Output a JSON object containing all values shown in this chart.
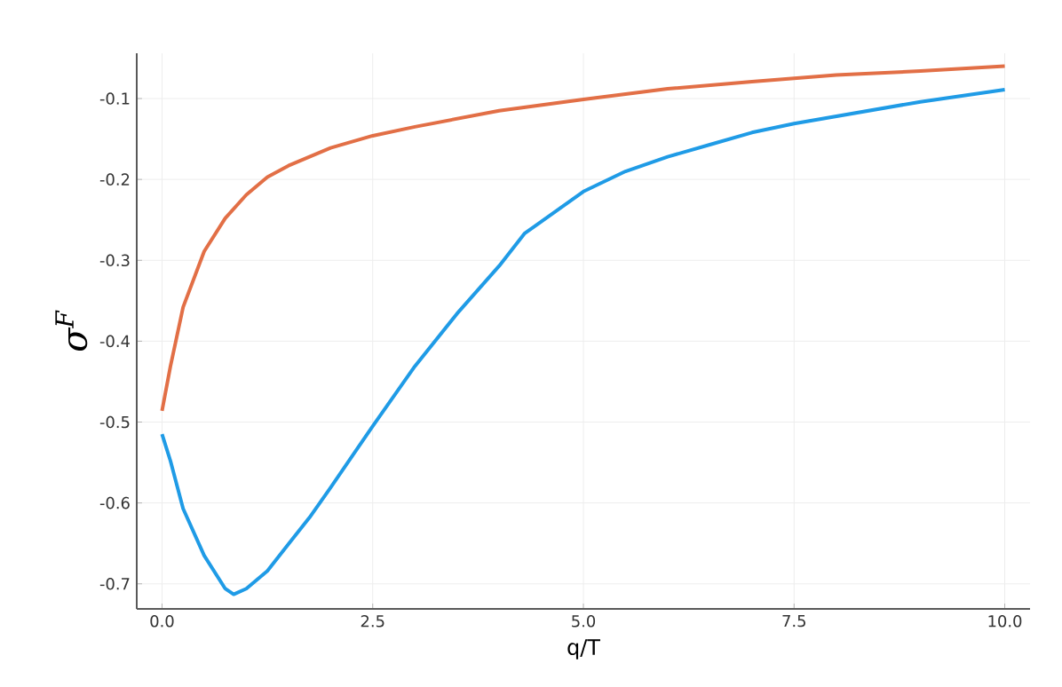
{
  "chart_data": {
    "type": "line",
    "xlabel": "q/T",
    "ylabel": "σ$^{F}$",
    "xlim": [
      -0.3,
      10.3
    ],
    "ylim": [
      -0.731,
      -0.044
    ],
    "xticks": [
      {
        "value": 0,
        "label": "0.0"
      },
      2.5,
      {
        "value": 5,
        "label": "5.0"
      },
      7.5,
      {
        "value": 10,
        "label": "10.0"
      }
    ],
    "yticks": [
      -0.7,
      -0.6,
      -0.5,
      -0.4,
      -0.3,
      -0.2,
      -0.1
    ],
    "grid": true,
    "line_style": "solid",
    "marker": "none",
    "series": [
      {
        "color": "#1f9be6",
        "x": [
          0,
          0.1,
          0.25,
          0.5,
          0.75,
          0.85,
          1.0,
          1.25,
          1.5,
          1.75,
          2.0,
          2.5,
          3.0,
          3.5,
          4.0,
          4.3,
          5.0,
          5.5,
          6.0,
          6.5,
          7.0,
          7.5,
          8.0,
          9.0,
          10.0
        ],
        "values": [
          -0.515,
          -0.548,
          -0.607,
          -0.665,
          -0.706,
          -0.713,
          -0.706,
          -0.684,
          -0.651,
          -0.618,
          -0.581,
          -0.505,
          -0.431,
          -0.366,
          -0.307,
          -0.267,
          -0.215,
          -0.19,
          -0.172,
          -0.157,
          -0.142,
          -0.131,
          -0.122,
          -0.104,
          -0.089
        ]
      },
      {
        "color": "#e26f46",
        "x": [
          0,
          0.1,
          0.25,
          0.5,
          0.75,
          1.0,
          1.25,
          1.5,
          2.0,
          2.5,
          3.0,
          4.0,
          5.0,
          6.0,
          7.0,
          8.0,
          9.0,
          10.0
        ],
        "values": [
          -0.486,
          -0.431,
          -0.358,
          -0.289,
          -0.248,
          -0.219,
          -0.197,
          -0.183,
          -0.161,
          -0.146,
          -0.135,
          -0.115,
          -0.101,
          -0.088,
          -0.079,
          -0.071,
          -0.066,
          -0.06
        ]
      }
    ]
  }
}
